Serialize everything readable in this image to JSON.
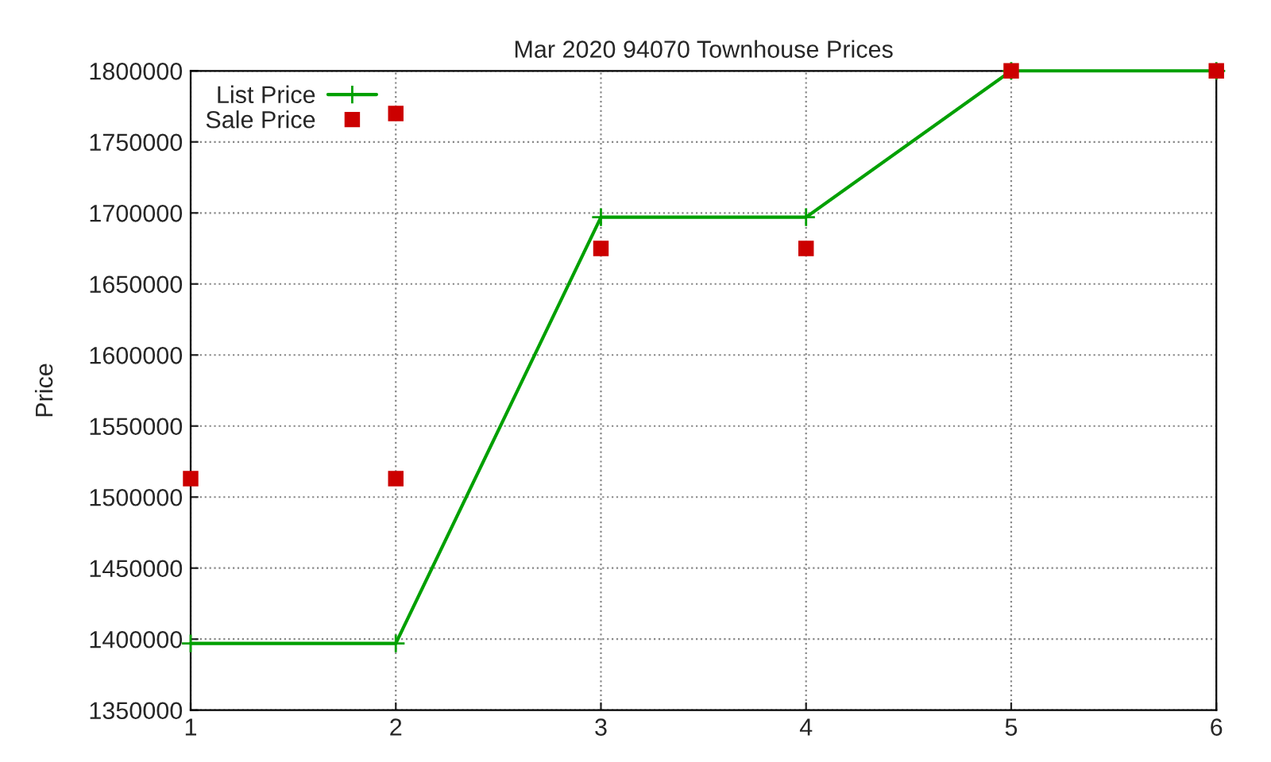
{
  "chart_data": {
    "type": "line",
    "title": "Mar 2020 94070 Townhouse Prices",
    "ylabel": "Price",
    "series": [
      {
        "name": "List Price",
        "color": "#00a000",
        "marker": "cross",
        "x": [
          1,
          2,
          3,
          4,
          5,
          6
        ],
        "values": [
          1397000,
          1397000,
          1697000,
          1697000,
          1800000,
          1800000
        ]
      },
      {
        "name": "Sale Price",
        "type": "scatter",
        "color": "#cc0000",
        "marker": "square",
        "x": [
          1,
          2,
          2,
          3,
          4,
          5,
          6
        ],
        "values": [
          1513000,
          1770000,
          1513000,
          1675000,
          1675000,
          1800000,
          1800000
        ]
      }
    ],
    "xlim": [
      1,
      6
    ],
    "xticks": [
      1,
      2,
      3,
      4,
      5,
      6
    ],
    "ylim": [
      1350000,
      1800000
    ],
    "yticks": [
      1350000,
      1400000,
      1450000,
      1500000,
      1550000,
      1600000,
      1650000,
      1700000,
      1750000,
      1800000
    ],
    "grid": true,
    "legend": "top left"
  }
}
